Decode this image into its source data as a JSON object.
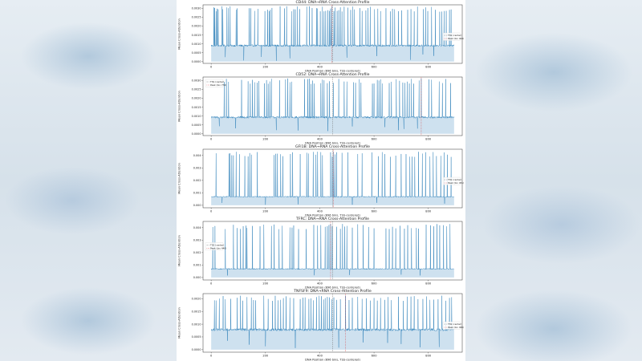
{
  "chart_data": [
    {
      "type": "area",
      "title": "CD44: DNA→RNA Cross-Attention Profile",
      "xlabel": "DNA Position (896 bins, TSS-centered)",
      "ylabel": "Mean Cross-Attention",
      "xlim": [
        -30,
        925
      ],
      "ylim": [
        -0.0001,
        0.0032
      ],
      "xticks": [
        0,
        200,
        400,
        600,
        800
      ],
      "yticks": [
        0.0,
        0.0005,
        0.001,
        0.0015,
        0.002,
        0.0025,
        0.003
      ],
      "ytick_labels": [
        "0.0000",
        "0.0005",
        "0.0010",
        "0.0015",
        "0.0020",
        "0.0025",
        "0.0030"
      ],
      "baseline": 0.00092,
      "peak_value": 0.00312,
      "peak_bin": 444,
      "tss_bin": 448,
      "spike_bins": [
        10,
        13,
        18,
        22,
        26,
        40,
        43,
        58,
        64,
        70,
        92,
        96,
        140,
        146,
        160,
        172,
        198,
        208,
        214,
        218,
        224,
        254,
        270,
        278,
        296,
        304,
        310,
        318,
        326,
        352,
        362,
        372,
        388,
        392,
        402,
        410,
        416,
        422,
        430,
        436,
        440,
        444,
        452,
        456,
        464,
        470,
        476,
        482,
        490,
        504,
        514,
        522,
        528,
        548,
        556,
        570,
        578,
        586,
        602,
        614,
        624,
        644,
        660,
        668,
        676,
        690,
        702,
        724,
        736,
        748,
        760,
        782,
        790,
        798,
        812,
        826,
        842,
        850,
        858,
        866,
        878,
        884
      ],
      "dip_bins": [
        52,
        120,
        185,
        240,
        290,
        500,
        610,
        735,
        780,
        820
      ],
      "legend": [
        "TSS (center)",
        "Peak (bin 444)"
      ],
      "legend_position": "right"
    },
    {
      "type": "area",
      "title": "CD52: DNA→RNA Cross-Attention Profile",
      "xlabel": "DNA Position (896 bins, TSS-centered)",
      "ylabel": "Mean Cross-Attention",
      "xlim": [
        -30,
        925
      ],
      "ylim": [
        -0.0001,
        0.0032
      ],
      "xticks": [
        0,
        200,
        400,
        600,
        800
      ],
      "yticks": [
        0.0,
        0.0005,
        0.001,
        0.0015,
        0.002,
        0.0025,
        0.003
      ],
      "ytick_labels": [
        "0.0000",
        "0.0005",
        "0.0010",
        "0.0015",
        "0.0020",
        "0.0025",
        "0.0030"
      ],
      "baseline": 0.00095,
      "peak_value": 0.00312,
      "peak_bin": 774,
      "tss_bin": 448,
      "spike_bins": [
        48,
        56,
        64,
        112,
        136,
        144,
        152,
        160,
        170,
        176,
        196,
        204,
        210,
        216,
        222,
        252,
        274,
        282,
        290,
        296,
        344,
        356,
        362,
        368,
        374,
        380,
        404,
        410,
        416,
        428,
        436,
        450,
        470,
        490,
        500,
        524,
        532,
        546,
        552,
        594,
        600,
        612,
        618,
        624,
        630,
        656,
        664,
        682,
        694,
        706,
        714,
        722,
        730,
        738,
        746,
        766,
        774,
        802,
        812,
        840,
        852,
        864,
        882
      ],
      "dip_bins": [
        30,
        90,
        240,
        320,
        430,
        520,
        640,
        690,
        710,
        760
      ],
      "legend": [
        "TSS (center)",
        "Peak (bin 774)"
      ],
      "legend_position": "top-left"
    },
    {
      "type": "area",
      "title": "GFI1B: DNA→RNA Cross-Attention Profile",
      "xlabel": "DNA Position (896 bins, TSS-centered)",
      "ylabel": "Mean Cross-Attention",
      "xlim": [
        -30,
        925
      ],
      "ylim": [
        -0.0002,
        0.0045
      ],
      "xticks": [
        0,
        200,
        400,
        600,
        800
      ],
      "yticks": [
        0.0,
        0.001,
        0.002,
        0.003,
        0.004
      ],
      "ytick_labels": [
        "0.000",
        "0.001",
        "0.002",
        "0.003",
        "0.004"
      ],
      "baseline": 0.0007,
      "peak_value": 0.0043,
      "peak_bin": 451,
      "tss_bin": 448,
      "spike_bins": [
        18,
        66,
        70,
        76,
        82,
        92,
        104,
        124,
        136,
        142,
        148,
        170,
        232,
        238,
        244,
        256,
        264,
        292,
        300,
        328,
        352,
        358,
        376,
        386,
        392,
        404,
        410,
        440,
        446,
        451,
        456,
        462,
        482,
        504,
        540,
        556,
        592,
        616,
        630,
        640,
        660,
        680,
        700,
        718,
        732,
        740,
        750,
        764,
        778,
        790,
        806,
        818,
        830,
        846,
        858,
        870,
        884
      ],
      "dip_bins": [
        40,
        200,
        320,
        520,
        610,
        700,
        860
      ],
      "legend": [
        "TSS (center)",
        "Peak (bin 451)"
      ],
      "legend_position": "right"
    },
    {
      "type": "area",
      "title": "TFRC: DNA→RNA Cross-Attention Profile",
      "xlabel": "DNA Position (896 bins, TSS-centered)",
      "ylabel": "Mean Cross-Attention",
      "xlim": [
        -30,
        925
      ],
      "ylim": [
        -0.0002,
        0.0045
      ],
      "xticks": [
        0,
        200,
        400,
        600,
        800
      ],
      "yticks": [
        0.0,
        0.001,
        0.002,
        0.003,
        0.004
      ],
      "ytick_labels": [
        "0.000",
        "0.001",
        "0.002",
        "0.003",
        "0.004"
      ],
      "baseline": 0.0007,
      "peak_value": 0.0043,
      "peak_bin": 440,
      "tss_bin": 448,
      "spike_bins": [
        6,
        14,
        52,
        82,
        96,
        108,
        118,
        128,
        132,
        152,
        180,
        194,
        222,
        232,
        250,
        262,
        290,
        298,
        304,
        322,
        350,
        378,
        392,
        404,
        420,
        428,
        434,
        440,
        446,
        462,
        476,
        484,
        492,
        500,
        520,
        540,
        560,
        580,
        600,
        644,
        656,
        668,
        680,
        696,
        712,
        724,
        738,
        756,
        764,
        792,
        808,
        820,
        832,
        842,
        856,
        868,
        880
      ],
      "dip_bins": [
        60,
        250,
        380,
        510,
        580,
        700,
        770
      ],
      "legend": [
        "TSS (center)",
        "Peak (bin 440)"
      ],
      "legend_position": "left"
    },
    {
      "type": "area",
      "title": "TNFSF9: DNA→RNA Cross-Attention Profile",
      "xlabel": "DNA Position (896 bins, TSS-centered)",
      "ylabel": "Mean Cross-Attention",
      "xlim": [
        -30,
        925
      ],
      "ylim": [
        -0.0001,
        0.0022
      ],
      "xticks": [
        0,
        200,
        400,
        600,
        800
      ],
      "yticks": [
        0.0,
        0.0005,
        0.001,
        0.0015,
        0.002
      ],
      "ytick_labels": [
        "0.0000",
        "0.0005",
        "0.0010",
        "0.0015",
        "0.0020"
      ],
      "baseline": 0.0008,
      "peak_value": 0.00212,
      "peak_bin": 495,
      "tss_bin": 448,
      "spike_bins": [
        12,
        18,
        30,
        44,
        52,
        72,
        96,
        108,
        116,
        132,
        148,
        156,
        164,
        194,
        210,
        226,
        236,
        246,
        256,
        266,
        276,
        290,
        304,
        328,
        338,
        346,
        360,
        368,
        376,
        388,
        398,
        406,
        414,
        420,
        428,
        436,
        444,
        452,
        462,
        476,
        495,
        508,
        520,
        540,
        556,
        572,
        586,
        600,
        612,
        624,
        640,
        652,
        664,
        690,
        708,
        722,
        736,
        748,
        762,
        780,
        794,
        806,
        820,
        836,
        850,
        864,
        878,
        886
      ],
      "dip_bins": [
        60,
        140,
        200,
        310,
        470,
        560,
        650,
        700,
        770,
        840
      ],
      "legend": [
        "TSS (center)",
        "Peak (bin 495)"
      ],
      "legend_position": "right"
    }
  ]
}
